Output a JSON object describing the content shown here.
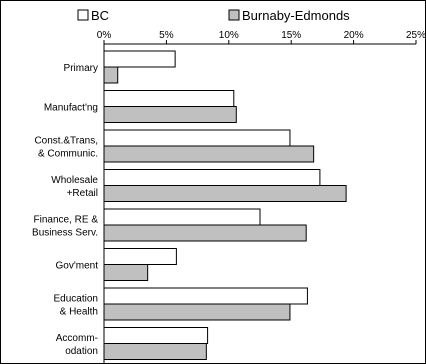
{
  "chart_data": {
    "type": "bar",
    "orientation": "horizontal",
    "categories": [
      [
        "Primary"
      ],
      [
        "Manufact'ng"
      ],
      [
        "Const.&Trans,",
        "& Communic."
      ],
      [
        "Wholesale",
        "+Retail"
      ],
      [
        "Finance, RE &",
        "Business Serv."
      ],
      [
        "Gov'ment"
      ],
      [
        "Education",
        "& Health"
      ],
      [
        "Accomm-",
        "odation"
      ]
    ],
    "series": [
      {
        "name": "BC",
        "color": "#ffffff",
        "values": [
          5.7,
          10.4,
          14.9,
          17.3,
          12.5,
          5.8,
          16.3,
          8.3
        ]
      },
      {
        "name": "Burnaby-Edmonds",
        "color": "#c0c0c0",
        "values": [
          1.1,
          10.6,
          16.8,
          19.4,
          16.2,
          3.5,
          14.9,
          8.2
        ]
      }
    ],
    "x_ticks": [
      "0%",
      "5%",
      "10%",
      "15%",
      "20%",
      "25%"
    ],
    "xlim": [
      0,
      25
    ],
    "legend_position": "top",
    "grid": false
  }
}
